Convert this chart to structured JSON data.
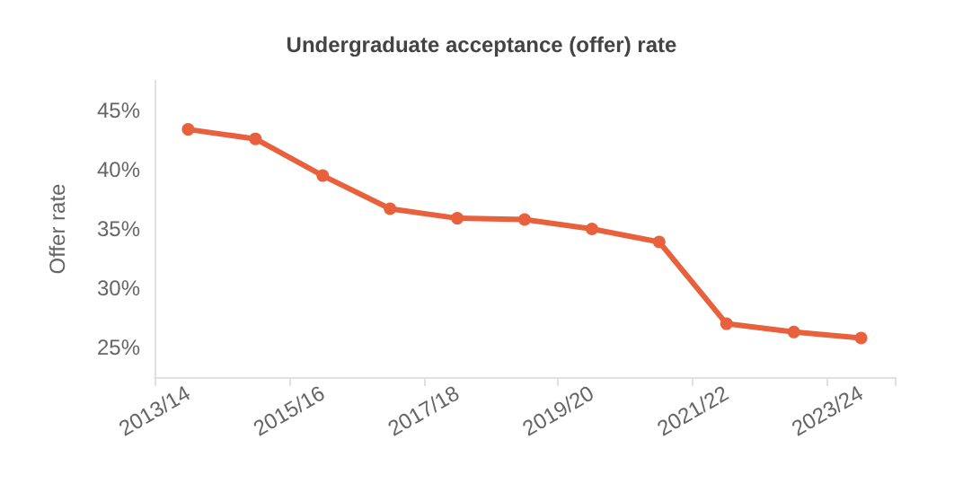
{
  "chart_data": {
    "type": "line",
    "title": "Undergraduate acceptance (offer) rate",
    "ylabel": "Offer rate",
    "categories": [
      "2013/14",
      null,
      "2015/16",
      null,
      "2017/18",
      null,
      "2019/20",
      null,
      "2021/22",
      null,
      "2023/24"
    ],
    "series": [
      {
        "color": "#e8603c",
        "values": [
          43.4,
          42.6,
          39.5,
          36.7,
          35.9,
          35.8,
          35.0,
          33.9,
          27.0,
          26.3,
          25.8
        ]
      }
    ],
    "ylim": [
      22.5,
      47.5
    ],
    "yticks": [
      {
        "value": 25,
        "label": "25%"
      },
      {
        "value": 30,
        "label": "30%"
      },
      {
        "value": 35,
        "label": "35%"
      },
      {
        "value": 40,
        "label": "40%"
      },
      {
        "value": 45,
        "label": "45%"
      }
    ],
    "grid": false,
    "marker": "circle",
    "line_style": "solid"
  }
}
